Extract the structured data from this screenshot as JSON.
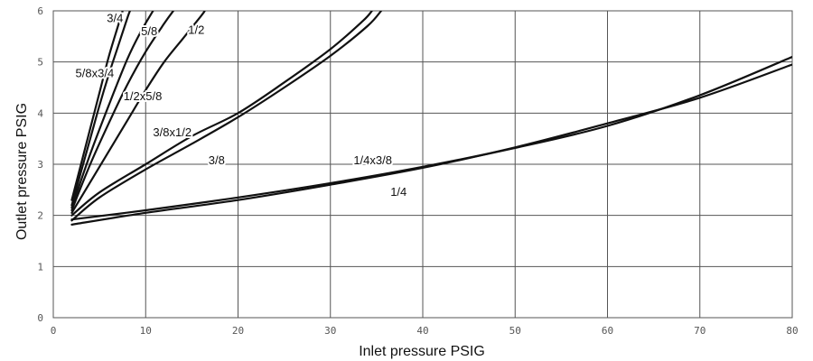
{
  "chart_data": {
    "type": "line",
    "title": "",
    "xlabel": "Inlet pressure PSIG",
    "ylabel": "Outlet pressure PSIG",
    "xlim": [
      0,
      80
    ],
    "ylim": [
      0,
      6
    ],
    "x_ticks": [
      "0",
      "10",
      "20",
      "30",
      "40",
      "50",
      "60",
      "70",
      "80"
    ],
    "y_ticks": [
      "0",
      "1",
      "2",
      "3",
      "4",
      "5",
      "6"
    ],
    "grid": true,
    "colors": {
      "line": "#111111",
      "grid": "#555555",
      "axis_text": "#111111",
      "tick_text": "#555555"
    },
    "series": [
      {
        "name": "3/4",
        "points": [
          [
            2,
            2.3
          ],
          [
            3,
            3.0
          ],
          [
            4,
            3.7
          ],
          [
            5,
            4.4
          ],
          [
            6,
            5.1
          ],
          [
            7,
            5.7
          ],
          [
            7.5,
            6.0
          ]
        ]
      },
      {
        "name": "5/8x3/4",
        "points": [
          [
            2,
            2.2
          ],
          [
            3,
            2.85
          ],
          [
            4,
            3.5
          ],
          [
            5,
            4.15
          ],
          [
            6,
            4.75
          ],
          [
            7,
            5.3
          ],
          [
            8,
            5.85
          ],
          [
            8.3,
            6.0
          ]
        ]
      },
      {
        "name": "5/8",
        "points": [
          [
            2,
            2.15
          ],
          [
            4,
            3.2
          ],
          [
            6,
            4.15
          ],
          [
            8,
            5.05
          ],
          [
            9.5,
            5.6
          ],
          [
            10.8,
            6.0
          ]
        ]
      },
      {
        "name": "1/2x5/8",
        "points": [
          [
            2,
            2.1
          ],
          [
            4,
            3.0
          ],
          [
            6,
            3.8
          ],
          [
            8,
            4.55
          ],
          [
            10,
            5.2
          ],
          [
            12,
            5.75
          ],
          [
            13,
            6.0
          ]
        ]
      },
      {
        "name": "1/2",
        "points": [
          [
            2,
            2.05
          ],
          [
            4,
            2.65
          ],
          [
            6,
            3.25
          ],
          [
            8,
            3.85
          ],
          [
            10,
            4.45
          ],
          [
            12,
            5.0
          ],
          [
            14,
            5.45
          ],
          [
            16,
            5.9
          ],
          [
            16.4,
            6.0
          ]
        ]
      },
      {
        "name": "3/8x1/2",
        "points": [
          [
            2,
            2.0
          ],
          [
            5,
            2.45
          ],
          [
            10,
            3.0
          ],
          [
            15,
            3.55
          ],
          [
            20,
            4.0
          ],
          [
            25,
            4.6
          ],
          [
            30,
            5.25
          ],
          [
            33.5,
            5.8
          ],
          [
            34.5,
            6.0
          ]
        ]
      },
      {
        "name": "3/8",
        "points": [
          [
            2,
            1.9
          ],
          [
            5,
            2.35
          ],
          [
            10,
            2.9
          ],
          [
            15,
            3.4
          ],
          [
            20,
            3.92
          ],
          [
            25,
            4.5
          ],
          [
            30,
            5.12
          ],
          [
            34,
            5.7
          ],
          [
            35.5,
            6.0
          ]
        ]
      },
      {
        "name": "1/4x3/8",
        "points": [
          [
            2,
            1.92
          ],
          [
            10,
            2.1
          ],
          [
            20,
            2.35
          ],
          [
            30,
            2.63
          ],
          [
            40,
            2.95
          ],
          [
            50,
            3.32
          ],
          [
            60,
            3.75
          ],
          [
            70,
            4.35
          ],
          [
            80,
            5.1
          ]
        ]
      },
      {
        "name": "1/4",
        "points": [
          [
            2,
            1.82
          ],
          [
            10,
            2.05
          ],
          [
            20,
            2.3
          ],
          [
            30,
            2.6
          ],
          [
            40,
            2.93
          ],
          [
            50,
            3.33
          ],
          [
            60,
            3.8
          ],
          [
            70,
            4.3
          ],
          [
            80,
            4.95
          ]
        ]
      }
    ],
    "curve_labels": [
      {
        "text": "3/4",
        "x": 5.8,
        "y": 5.78
      },
      {
        "text": "5/8",
        "x": 9.5,
        "y": 5.52
      },
      {
        "text": "1/2",
        "x": 14.6,
        "y": 5.55
      },
      {
        "text": "5/8x3/4",
        "x": 2.4,
        "y": 4.7
      },
      {
        "text": "1/2x5/8",
        "x": 7.6,
        "y": 4.25
      },
      {
        "text": "3/8x1/2",
        "x": 10.8,
        "y": 3.55
      },
      {
        "text": "3/8",
        "x": 16.8,
        "y": 3.0
      },
      {
        "text": "1/4x3/8",
        "x": 32.5,
        "y": 3.0
      },
      {
        "text": "1/4",
        "x": 36.5,
        "y": 2.38
      }
    ]
  }
}
